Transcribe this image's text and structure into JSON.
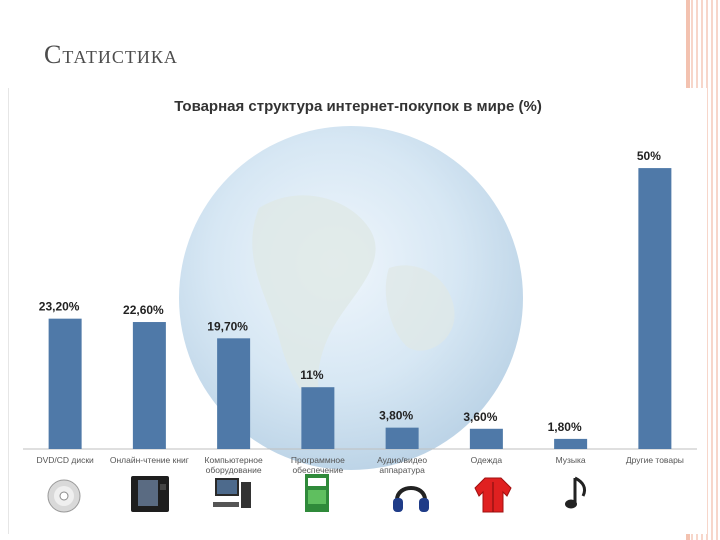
{
  "slide": {
    "title": "Статистика"
  },
  "colors": {
    "bar": "#4f79a8",
    "accent_border": "#f3c2b0"
  },
  "chart_data": {
    "type": "bar",
    "title": "Товарная структура интернет-покупок в мире (%)",
    "categories": [
      "DVD/CD диски",
      "Онлайн-чтение книг",
      "Компьютерное оборудование",
      "Программное обеспечение",
      "Аудио/видео аппаратура",
      "Одежда",
      "Музыка",
      "Другие товары"
    ],
    "values": [
      23.2,
      22.6,
      19.7,
      11,
      3.8,
      3.6,
      1.8,
      50
    ],
    "value_labels": [
      "23,20%",
      "22,60%",
      "19,70%",
      "11%",
      "3,80%",
      "3,60%",
      "1,80%",
      "50%"
    ],
    "ylim": [
      0,
      55
    ],
    "grid": false,
    "category_icons": [
      "disc-icon",
      "ebook-reader-icon",
      "computer-icon",
      "software-box-icon",
      "headphones-icon",
      "jacket-icon",
      "music-note-icon",
      ""
    ]
  }
}
